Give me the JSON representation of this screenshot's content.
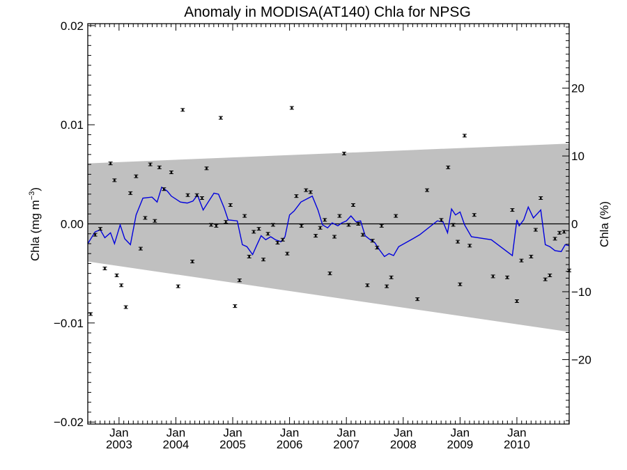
{
  "chart_data": {
    "type": "scatter",
    "title": "Anomaly in MODISA(AT140) Chla for NPSG",
    "ylabel_left": {
      "main": "Chla (mg m",
      "sup": "−3",
      "close": ")"
    },
    "ylabel_right": "Chla (%)",
    "xlim": [
      2002.45,
      2010.92
    ],
    "ylim": [
      -0.0202,
      0.0202
    ],
    "ylim_right": [
      -29.5,
      29.5
    ],
    "x_ticks": [
      {
        "x": 2003.0,
        "month": "Jan",
        "year": "2003"
      },
      {
        "x": 2004.0,
        "month": "Jan",
        "year": "2004"
      },
      {
        "x": 2005.0,
        "month": "Jan",
        "year": "2005"
      },
      {
        "x": 2006.0,
        "month": "Jan",
        "year": "2006"
      },
      {
        "x": 2007.0,
        "month": "Jan",
        "year": "2007"
      },
      {
        "x": 2008.0,
        "month": "Jan",
        "year": "2008"
      },
      {
        "x": 2009.0,
        "month": "Jan",
        "year": "2009"
      },
      {
        "x": 2010.0,
        "month": "Jan",
        "year": "2010"
      }
    ],
    "y_ticks_left": [
      {
        "v": 0.02,
        "label": "0.02"
      },
      {
        "v": 0.01,
        "label": "0.01"
      },
      {
        "v": 0.0,
        "label": "0.00"
      },
      {
        "v": -0.01,
        "label": "−0.01"
      },
      {
        "v": -0.02,
        "label": "−0.02"
      }
    ],
    "y_ticks_right": [
      {
        "v": 20,
        "label": "20"
      },
      {
        "v": 10,
        "label": "10"
      },
      {
        "v": 0,
        "label": "0"
      },
      {
        "v": -10,
        "label": "−10"
      },
      {
        "v": -20,
        "label": "−20"
      }
    ],
    "band": {
      "color": "#c0c0c0",
      "upper": [
        [
          2002.45,
          0.0061
        ],
        [
          2010.92,
          0.0081
        ]
      ],
      "lower": [
        [
          2002.45,
          -0.0038
        ],
        [
          2010.92,
          -0.0109
        ]
      ]
    },
    "zero_line": true,
    "line_series": {
      "color": "#0000dd",
      "points": [
        [
          2002.45,
          -0.002
        ],
        [
          2002.58,
          -0.0008
        ],
        [
          2002.67,
          -0.0006
        ],
        [
          2002.75,
          -0.0014
        ],
        [
          2002.85,
          -0.0009
        ],
        [
          2002.92,
          -0.002
        ],
        [
          2003.02,
          -0.0001
        ],
        [
          2003.1,
          -0.0015
        ],
        [
          2003.2,
          -0.0021
        ],
        [
          2003.3,
          0.0009
        ],
        [
          2003.42,
          0.0026
        ],
        [
          2003.58,
          0.0027
        ],
        [
          2003.67,
          0.0022
        ],
        [
          2003.75,
          0.0037
        ],
        [
          2003.85,
          0.0033
        ],
        [
          2003.92,
          0.0028
        ],
        [
          2004.08,
          0.0022
        ],
        [
          2004.2,
          0.0021
        ],
        [
          2004.3,
          0.0023
        ],
        [
          2004.38,
          0.0029
        ],
        [
          2004.48,
          0.0014
        ],
        [
          2004.58,
          0.0023
        ],
        [
          2004.67,
          0.0031
        ],
        [
          2004.75,
          0.003
        ],
        [
          2004.85,
          0.0016
        ],
        [
          2004.92,
          0.0004
        ],
        [
          2005.08,
          0.0003
        ],
        [
          2005.17,
          -0.0021
        ],
        [
          2005.25,
          -0.0023
        ],
        [
          2005.35,
          -0.0031
        ],
        [
          2005.42,
          -0.0022
        ],
        [
          2005.5,
          -0.0012
        ],
        [
          2005.58,
          -0.0016
        ],
        [
          2005.67,
          -0.0013
        ],
        [
          2005.75,
          -0.0016
        ],
        [
          2005.85,
          -0.0018
        ],
        [
          2005.92,
          -0.0013
        ],
        [
          2006.0,
          0.0009
        ],
        [
          2006.08,
          0.0013
        ],
        [
          2006.2,
          0.0022
        ],
        [
          2006.3,
          0.0025
        ],
        [
          2006.4,
          0.0028
        ],
        [
          2006.5,
          0.0014
        ],
        [
          2006.58,
          -0.0001
        ],
        [
          2006.67,
          -0.0004
        ],
        [
          2006.75,
          0.0001
        ],
        [
          2006.85,
          -0.0002
        ],
        [
          2006.92,
          0.0001
        ],
        [
          2007.0,
          0.0003
        ],
        [
          2007.08,
          0.0008
        ],
        [
          2007.17,
          0.0002
        ],
        [
          2007.25,
          0.0003
        ],
        [
          2007.33,
          -0.0012
        ],
        [
          2007.42,
          -0.0016
        ],
        [
          2007.5,
          -0.0019
        ],
        [
          2007.58,
          -0.0026
        ],
        [
          2007.67,
          -0.0033
        ],
        [
          2007.75,
          -0.003
        ],
        [
          2007.83,
          -0.0032
        ],
        [
          2007.92,
          -0.0023
        ],
        [
          2008.17,
          -0.0015
        ],
        [
          2008.29,
          -0.0011
        ],
        [
          2008.6,
          0.0003
        ],
        [
          2008.7,
          0.0002
        ],
        [
          2008.78,
          -0.0009
        ],
        [
          2008.85,
          0.0015
        ],
        [
          2008.92,
          0.0009
        ],
        [
          2009.0,
          0.0012
        ],
        [
          2009.08,
          -0.0001
        ],
        [
          2009.2,
          -0.0013
        ],
        [
          2009.55,
          -0.0016
        ],
        [
          2009.92,
          -0.0032
        ],
        [
          2010.0,
          0.0004
        ],
        [
          2010.04,
          -0.0002
        ],
        [
          2010.12,
          0.0004
        ],
        [
          2010.2,
          0.0017
        ],
        [
          2010.29,
          0.0006
        ],
        [
          2010.42,
          0.0014
        ],
        [
          2010.5,
          -0.0021
        ],
        [
          2010.58,
          -0.0023
        ],
        [
          2010.67,
          -0.0027
        ],
        [
          2010.78,
          -0.0028
        ],
        [
          2010.85,
          -0.0021
        ],
        [
          2010.92,
          -0.0022
        ]
      ]
    },
    "points_series": {
      "color": "#000000",
      "points": [
        [
          2002.5,
          -0.0091
        ],
        [
          2002.58,
          -0.0011
        ],
        [
          2002.67,
          -0.0005
        ],
        [
          2002.75,
          -0.0045
        ],
        [
          2002.85,
          0.0061
        ],
        [
          2002.92,
          0.0044
        ],
        [
          2002.96,
          -0.0052
        ],
        [
          2003.04,
          -0.0062
        ],
        [
          2003.12,
          -0.0084
        ],
        [
          2003.2,
          0.0031
        ],
        [
          2003.3,
          0.0048
        ],
        [
          2003.38,
          -0.0025
        ],
        [
          2003.46,
          0.0006
        ],
        [
          2003.55,
          0.006
        ],
        [
          2003.63,
          0.0003
        ],
        [
          2003.71,
          0.0057
        ],
        [
          2003.79,
          0.0035
        ],
        [
          2003.92,
          0.0052
        ],
        [
          2004.04,
          -0.0063
        ],
        [
          2004.12,
          0.0115
        ],
        [
          2004.21,
          0.0029
        ],
        [
          2004.29,
          -0.0038
        ],
        [
          2004.37,
          0.0029
        ],
        [
          2004.46,
          0.0026
        ],
        [
          2004.54,
          0.0056
        ],
        [
          2004.62,
          -0.0001
        ],
        [
          2004.71,
          -0.0002
        ],
        [
          2004.79,
          0.0107
        ],
        [
          2004.88,
          0.0002
        ],
        [
          2004.96,
          0.0019
        ],
        [
          2005.04,
          -0.0083
        ],
        [
          2005.12,
          -0.0057
        ],
        [
          2005.21,
          0.0008
        ],
        [
          2005.29,
          -0.0033
        ],
        [
          2005.37,
          -0.0008
        ],
        [
          2005.46,
          -0.0005
        ],
        [
          2005.54,
          -0.0036
        ],
        [
          2005.62,
          -0.001
        ],
        [
          2005.71,
          -0.0001
        ],
        [
          2005.79,
          -0.0019
        ],
        [
          2005.88,
          -0.0016
        ],
        [
          2005.96,
          -0.003
        ],
        [
          2006.04,
          0.0117
        ],
        [
          2006.12,
          0.0028
        ],
        [
          2006.21,
          -0.0002
        ],
        [
          2006.29,
          0.0034
        ],
        [
          2006.37,
          0.0032
        ],
        [
          2006.46,
          -0.0012
        ],
        [
          2006.54,
          -0.0004
        ],
        [
          2006.62,
          0.0004
        ],
        [
          2006.71,
          -0.005
        ],
        [
          2006.79,
          -0.0013
        ],
        [
          2006.88,
          0.0008
        ],
        [
          2006.96,
          0.0071
        ],
        [
          2007.04,
          -0.0001
        ],
        [
          2007.12,
          0.0019
        ],
        [
          2007.21,
          0.0
        ],
        [
          2007.29,
          -0.0011
        ],
        [
          2007.37,
          -0.0062
        ],
        [
          2007.46,
          -0.0017
        ],
        [
          2007.54,
          -0.0024
        ],
        [
          2007.62,
          -0.0002
        ],
        [
          2007.71,
          -0.0063
        ],
        [
          2007.79,
          -0.0054
        ],
        [
          2007.87,
          0.0008
        ],
        [
          2008.25,
          -0.0076
        ],
        [
          2008.42,
          0.0034
        ],
        [
          2008.67,
          0.0004
        ],
        [
          2008.79,
          0.0057
        ],
        [
          2008.88,
          -0.0001
        ],
        [
          2008.96,
          -0.0018
        ],
        [
          2009.0,
          -0.0061
        ],
        [
          2009.08,
          0.0089
        ],
        [
          2009.17,
          -0.0022
        ],
        [
          2009.25,
          0.0009
        ],
        [
          2009.58,
          -0.0053
        ],
        [
          2009.83,
          -0.0054
        ],
        [
          2009.92,
          0.0014
        ],
        [
          2010.0,
          -0.0078
        ],
        [
          2010.08,
          -0.0037
        ],
        [
          2010.25,
          -0.0033
        ],
        [
          2010.33,
          -0.0006
        ],
        [
          2010.42,
          0.0026
        ],
        [
          2010.5,
          -0.0056
        ],
        [
          2010.58,
          -0.0052
        ],
        [
          2010.67,
          -0.0015
        ],
        [
          2010.75,
          -0.0009
        ],
        [
          2010.83,
          -0.0008
        ],
        [
          2010.92,
          -0.0047
        ]
      ]
    }
  }
}
